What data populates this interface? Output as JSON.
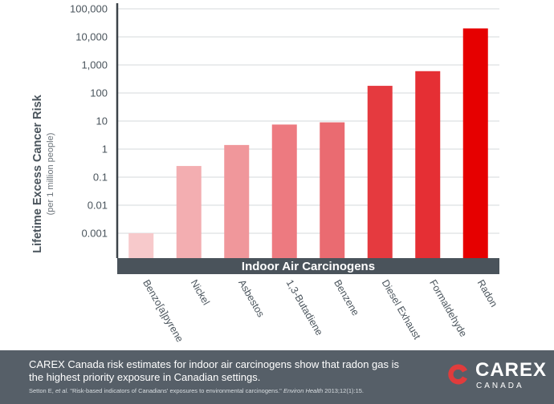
{
  "chart_data": {
    "type": "bar",
    "yscale": "log",
    "xlabel": "Indoor Air Carcinogens",
    "ylabel": "Lifetime Excess Cancer Risk",
    "ylabel_sub": "(per 1 million people)",
    "ylim": [
      0.0001,
      100000
    ],
    "yticks": [
      {
        "value": 0.001,
        "label": "0.001"
      },
      {
        "value": 0.01,
        "label": "0.01"
      },
      {
        "value": 0.1,
        "label": "0.1"
      },
      {
        "value": 1,
        "label": "1"
      },
      {
        "value": 10,
        "label": "10"
      },
      {
        "value": 100,
        "label": "100"
      },
      {
        "value": 1000,
        "label": "1,000"
      },
      {
        "value": 10000,
        "label": "10,000"
      },
      {
        "value": 100000,
        "label": "100,000"
      }
    ],
    "grid": true,
    "categories": [
      "Benzo[a]pyrene",
      "Nickel",
      "Asbestos",
      "1,3-Butadiene",
      "Benzene",
      "Diesel Exhaust",
      "Formaldehyde",
      "Radon"
    ],
    "values": [
      0.001,
      0.25,
      1.4,
      7.5,
      9,
      180,
      600,
      20000
    ],
    "colors": [
      "#f7c9cb",
      "#f3aeb1",
      "#f0979b",
      "#ed7a80",
      "#ea6b71",
      "#e53a3f",
      "#e52f34",
      "#e60000"
    ]
  },
  "footer": {
    "summary": "CAREX Canada risk estimates for indoor air carcinogens show that radon gas is the highest priority exposure in Canadian settings.",
    "citation_authors": "Setton E, ",
    "citation_etal": "et al.",
    "citation_title": " \"Risk-based indicators of Canadians' exposures to environmental carcinogens.\" ",
    "citation_journal": "Environ Health",
    "citation_ref": " 2013;12(1):15."
  },
  "logo": {
    "name": "CAREX",
    "subtitle": "CANADA",
    "mark_color": "#e03c3c"
  }
}
